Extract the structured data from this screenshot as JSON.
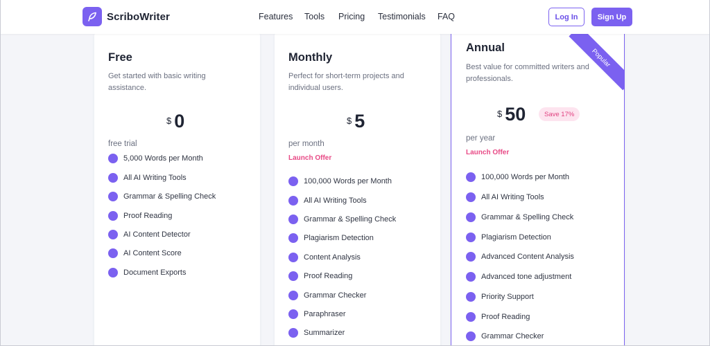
{
  "header": {
    "brand": "ScriboWriter",
    "nav": [
      "Features",
      "Tools",
      "Pricing",
      "Testimonials",
      "FAQ"
    ],
    "login_label": "Log In",
    "signup_label": "Sign Up"
  },
  "plans": {
    "free": {
      "name": "Free",
      "description": "Get started with basic writing assistance.",
      "currency": "$",
      "amount": "0",
      "period": "free trial",
      "features": [
        "5,000 Words per Month",
        "All AI Writing Tools",
        "Grammar & Spelling Check",
        "Proof Reading",
        "AI Content Detector",
        "AI Content Score",
        "Document Exports"
      ]
    },
    "monthly": {
      "name": "Monthly",
      "description": "Perfect for short-term projects and individual users.",
      "currency": "$",
      "amount": "5",
      "period": "per month",
      "offer": "Launch Offer",
      "features": [
        "100,000 Words per Month",
        "All AI Writing Tools",
        "Grammar & Spelling Check",
        "Plagiarism Detection",
        "Content Analysis",
        "Proof Reading",
        "Grammar Checker",
        "Paraphraser",
        "Summarizer"
      ]
    },
    "annual": {
      "name": "Annual",
      "description": "Best value for committed writers and professionals.",
      "currency": "$",
      "amount": "50",
      "save_badge": "Save 17%",
      "period": "per year",
      "offer": "Launch Offer",
      "ribbon": "Popular",
      "features": [
        "100,000 Words per Month",
        "All AI Writing Tools",
        "Grammar & Spelling Check",
        "Plagiarism Detection",
        "Advanced Content Analysis",
        "Advanced tone adjustment",
        "Priority Support",
        "Proof Reading",
        "Grammar Checker"
      ]
    }
  },
  "colors": {
    "accent": "#7b61f0",
    "offer": "#e84a86",
    "badge_bg": "#fde4ef"
  }
}
